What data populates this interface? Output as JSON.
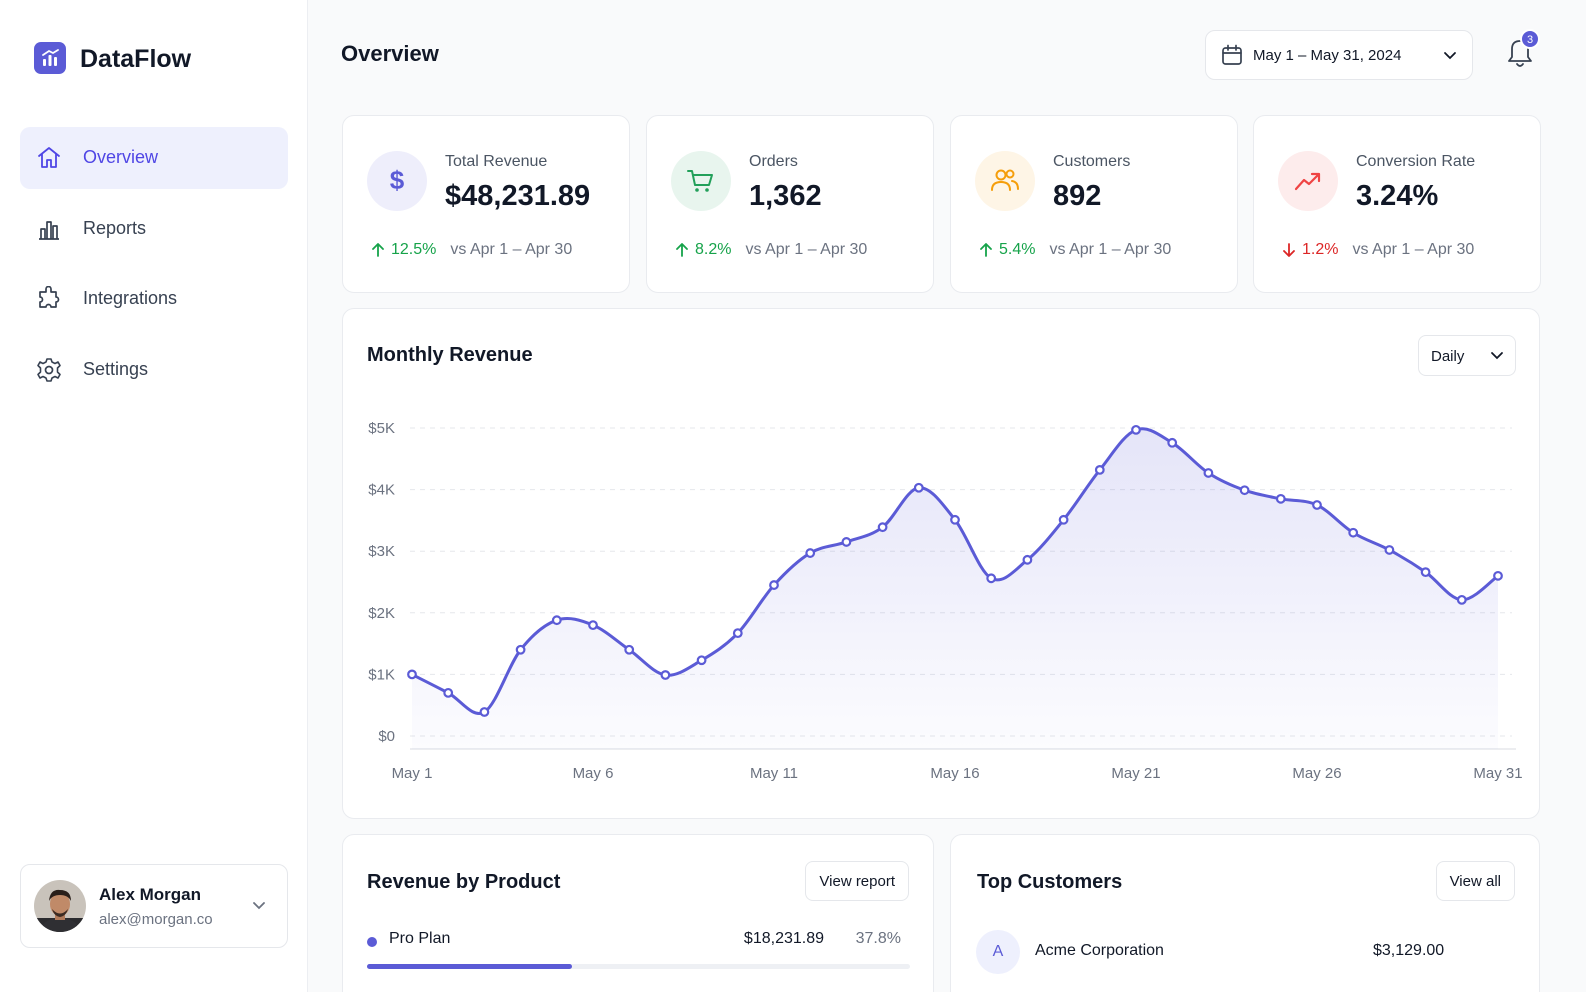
{
  "sidebar": {
    "brand": "DataFlow",
    "nav": [
      {
        "label": "Overview",
        "active": true
      },
      {
        "label": "Reports",
        "active": false
      },
      {
        "label": "Integrations",
        "active": false
      },
      {
        "label": "Settings",
        "active": false
      }
    ],
    "user": {
      "name": "Alex Morgan",
      "email": "alex@morgan.co"
    }
  },
  "header": {
    "title": "Overview",
    "date_range": "May 1 – May 31, 2024",
    "notifications": 3
  },
  "stats": [
    {
      "label": "Total Revenue",
      "value": "$48,231.89",
      "change": "12.5%",
      "trend": "up",
      "comparison": "vs Apr 1 – Apr 30",
      "color": "#5b5bd6"
    },
    {
      "label": "Orders",
      "value": "1,362",
      "change": "8.2%",
      "trend": "up",
      "comparison": "vs Apr 1 – Apr 30",
      "color": "#22a05a"
    },
    {
      "label": "Customers",
      "value": "892",
      "change": "5.4%",
      "trend": "up",
      "comparison": "vs Apr 1 – Apr 30",
      "color": "#f59e0b"
    },
    {
      "label": "Conversion Rate",
      "value": "3.24%",
      "change": "1.2%",
      "trend": "down",
      "comparison": "vs Apr 1 – Apr 30",
      "color": "#ef4444"
    }
  ],
  "chart_data": {
    "type": "line",
    "title": "Monthly Revenue",
    "control": "Daily",
    "categories": [
      "May 1",
      null,
      null,
      null,
      null,
      "May 6",
      null,
      null,
      null,
      null,
      "May 11",
      null,
      null,
      null,
      null,
      "May 16",
      null,
      null,
      null,
      null,
      "May 21",
      null,
      null,
      null,
      null,
      "May 26",
      null,
      null,
      null,
      null,
      "May 31"
    ],
    "values": [
      1000,
      700,
      390,
      1400,
      1880,
      1800,
      1400,
      990,
      1230,
      1670,
      2450,
      2970,
      3150,
      3390,
      4030,
      3510,
      2560,
      2860,
      3510,
      4320,
      4970,
      4760,
      4270,
      3990,
      3850,
      3750,
      3300,
      3020,
      2660,
      2210,
      2600
    ],
    "color": "#5b5bd6",
    "area": true,
    "ylim": [
      0,
      5000
    ],
    "yticks": [
      {
        "value": 0,
        "label": "$0"
      },
      {
        "value": 1000,
        "label": "$1K"
      },
      {
        "value": 2000,
        "label": "$2K"
      },
      {
        "value": 3000,
        "label": "$3K"
      },
      {
        "value": 4000,
        "label": "$4K"
      },
      {
        "value": 5000,
        "label": "$5K"
      }
    ],
    "grid": true
  },
  "revenue_by_product": {
    "title": "Revenue by Product",
    "action": "View report",
    "rows": [
      {
        "name": "Pro Plan",
        "revenue": "$18,231.89",
        "share": {
          "value": 37.8,
          "label": "37.8%"
        },
        "color": "#5b5bd6"
      }
    ]
  },
  "top_customers": {
    "title": "Top Customers",
    "action": "View all",
    "rows": [
      {
        "initial": "A",
        "name": "Acme Corporation",
        "revenue": "$3,129.00"
      }
    ]
  }
}
